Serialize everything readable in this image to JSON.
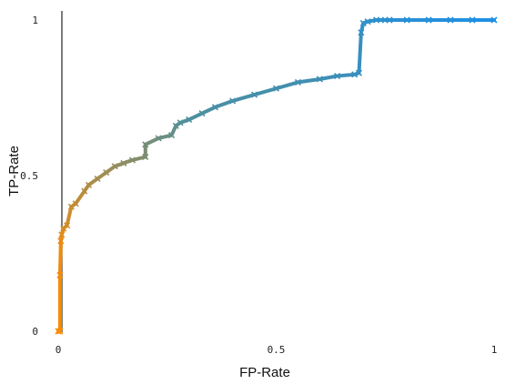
{
  "chart_data": {
    "type": "line",
    "title": "",
    "xlabel": "FP-Rate",
    "ylabel": "TP-Rate",
    "xlim": [
      0,
      1
    ],
    "ylim": [
      0,
      1
    ],
    "x_ticks": [
      "0",
      "0.5",
      "1"
    ],
    "y_ticks": [
      "0",
      "0.5",
      "1"
    ],
    "grid": false,
    "legend": "none",
    "color_start": "#ff8c00",
    "color_mid": "#4f8f9c",
    "color_end": "#1e90e6",
    "series": [
      {
        "x": [
          0.0,
          0.004,
          0.004,
          0.006,
          0.008,
          0.012,
          0.02,
          0.03,
          0.04,
          0.06,
          0.07,
          0.09,
          0.11,
          0.13,
          0.15,
          0.17,
          0.2,
          0.2,
          0.23,
          0.26,
          0.27,
          0.28,
          0.3,
          0.33,
          0.36,
          0.4,
          0.45,
          0.5,
          0.55,
          0.6,
          0.64,
          0.68,
          0.69,
          0.695,
          0.7,
          0.71,
          0.73,
          0.75,
          0.76,
          0.8,
          0.85,
          0.9,
          0.95,
          1.0
        ],
        "y": [
          0.0,
          0.0,
          0.18,
          0.29,
          0.31,
          0.33,
          0.34,
          0.4,
          0.41,
          0.45,
          0.47,
          0.49,
          0.51,
          0.53,
          0.54,
          0.55,
          0.56,
          0.6,
          0.62,
          0.63,
          0.66,
          0.67,
          0.68,
          0.7,
          0.72,
          0.74,
          0.76,
          0.78,
          0.8,
          0.81,
          0.82,
          0.825,
          0.83,
          0.96,
          0.99,
          0.995,
          1.0,
          1.0,
          1.0,
          1.0,
          1.0,
          1.0,
          1.0,
          1.0
        ]
      }
    ]
  }
}
